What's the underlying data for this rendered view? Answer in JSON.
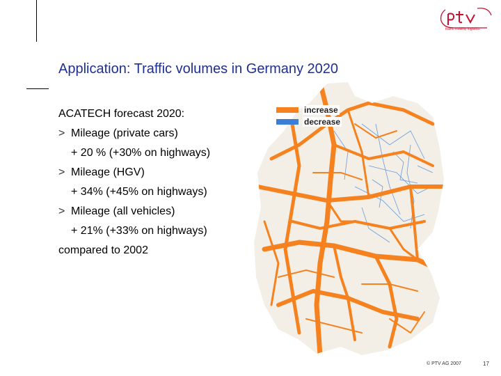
{
  "logo": {
    "name": "ptv",
    "tagline": "traffic mobility logistics",
    "accent": "#c8102e"
  },
  "slide": {
    "title": "Application: Traffic volumes in Germany 2020",
    "intro": "ACATECH forecast 2020:",
    "bullets": [
      {
        "label": "Mileage (private cars)",
        "detail": "+ 20 % (+30% on highways)"
      },
      {
        "label": "Mileage (HGV)",
        "detail": "+ 34% (+45% on highways)"
      },
      {
        "label": "Mileage (all vehicles)",
        "detail": "+ 21% (+33% on highways)"
      }
    ],
    "outro": "compared to 2002",
    "bullet_glyph": ">"
  },
  "map": {
    "legend": [
      {
        "label": "increase",
        "color": "#f5821f"
      },
      {
        "label": "decrease",
        "color": "#3a7fd5"
      }
    ]
  },
  "footer": {
    "copyright": "© PTV AG 2007",
    "page": "17"
  },
  "colors": {
    "title": "#1f2f8f",
    "increase": "#f5821f",
    "decrease": "#3a7fd5"
  }
}
